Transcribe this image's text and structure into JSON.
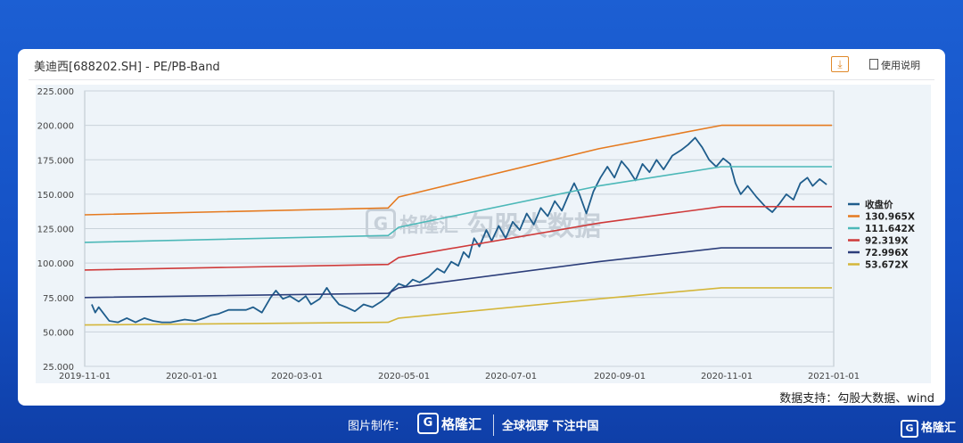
{
  "card": {
    "title": "美迪西[688202.SH] - PE/PB-Band",
    "help_label": "使用说明",
    "download_icon": "download-icon",
    "source": "数据支持：勾股大数据、wind"
  },
  "watermark": {
    "brand": "格隆汇",
    "text": "勾股大数据",
    "logo_letter": "G"
  },
  "footer": {
    "made_by": "图片制作：",
    "logo_letter": "G",
    "brand": "格隆汇",
    "slogan": "全球视野 下注中国",
    "corner_brand": "格隆汇"
  },
  "colors": {
    "close": "#1f5d8c",
    "band1": "#e57a1f",
    "band2": "#4cb8b8",
    "band3": "#cf3a3a",
    "band4": "#2c3e7a",
    "band5": "#d4b63a"
  },
  "chart_data": {
    "type": "line",
    "title": "美迪西[688202.SH] - PE/PB-Band",
    "ylim": [
      25,
      225
    ],
    "yticks": [
      "225.000",
      "200.000",
      "175.000",
      "150.000",
      "125.000",
      "100.000",
      "75.000",
      "50.000",
      "25.000"
    ],
    "ytick_values": [
      225,
      200,
      175,
      150,
      125,
      100,
      75,
      50,
      25
    ],
    "xlim": [
      "2019-11-01",
      "2021-01-01"
    ],
    "xticks": [
      "2019-11-01",
      "2020-01-01",
      "2020-03-01",
      "2020-05-01",
      "2020-07-01",
      "2020-09-01",
      "2020-11-01",
      "2021-01-01"
    ],
    "grid": true,
    "legend_position": "right",
    "series": [
      {
        "name": "收盘价",
        "color": "#1f5d8c",
        "points": [
          [
            "2019-11-05",
            70
          ],
          [
            "2019-11-07",
            64
          ],
          [
            "2019-11-09",
            68
          ],
          [
            "2019-11-12",
            63
          ],
          [
            "2019-11-15",
            58
          ],
          [
            "2019-11-20",
            57
          ],
          [
            "2019-11-25",
            60
          ],
          [
            "2019-11-30",
            57
          ],
          [
            "2019-12-05",
            60
          ],
          [
            "2019-12-10",
            58
          ],
          [
            "2019-12-15",
            57
          ],
          [
            "2019-12-20",
            57
          ],
          [
            "2019-12-28",
            59
          ],
          [
            "2020-01-03",
            58
          ],
          [
            "2020-01-08",
            60
          ],
          [
            "2020-01-12",
            62
          ],
          [
            "2020-01-16",
            63
          ],
          [
            "2020-01-22",
            66
          ],
          [
            "2020-02-01",
            66
          ],
          [
            "2020-02-05",
            68
          ],
          [
            "2020-02-10",
            64
          ],
          [
            "2020-02-15",
            75
          ],
          [
            "2020-02-18",
            80
          ],
          [
            "2020-02-22",
            74
          ],
          [
            "2020-02-26",
            76
          ],
          [
            "2020-03-02",
            72
          ],
          [
            "2020-03-06",
            76
          ],
          [
            "2020-03-09",
            70
          ],
          [
            "2020-03-14",
            74
          ],
          [
            "2020-03-18",
            82
          ],
          [
            "2020-03-21",
            76
          ],
          [
            "2020-03-25",
            70
          ],
          [
            "2020-03-29",
            68
          ],
          [
            "2020-04-03",
            65
          ],
          [
            "2020-04-08",
            70
          ],
          [
            "2020-04-13",
            68
          ],
          [
            "2020-04-18",
            72
          ],
          [
            "2020-04-22",
            76
          ],
          [
            "2020-04-24",
            80
          ],
          [
            "2020-04-28",
            85
          ],
          [
            "2020-05-02",
            83
          ],
          [
            "2020-05-06",
            88
          ],
          [
            "2020-05-10",
            86
          ],
          [
            "2020-05-15",
            90
          ],
          [
            "2020-05-20",
            96
          ],
          [
            "2020-05-24",
            93
          ],
          [
            "2020-05-28",
            101
          ],
          [
            "2020-06-01",
            98
          ],
          [
            "2020-06-04",
            108
          ],
          [
            "2020-06-07",
            104
          ],
          [
            "2020-06-10",
            118
          ],
          [
            "2020-06-13",
            112
          ],
          [
            "2020-06-17",
            124
          ],
          [
            "2020-06-20",
            116
          ],
          [
            "2020-06-24",
            127
          ],
          [
            "2020-06-28",
            118
          ],
          [
            "2020-07-02",
            130
          ],
          [
            "2020-07-06",
            124
          ],
          [
            "2020-07-10",
            136
          ],
          [
            "2020-07-14",
            128
          ],
          [
            "2020-07-18",
            140
          ],
          [
            "2020-07-22",
            134
          ],
          [
            "2020-07-26",
            145
          ],
          [
            "2020-07-30",
            138
          ],
          [
            "2020-08-03",
            150
          ],
          [
            "2020-08-06",
            158
          ],
          [
            "2020-08-09",
            150
          ],
          [
            "2020-08-13",
            136
          ],
          [
            "2020-08-17",
            152
          ],
          [
            "2020-08-21",
            162
          ],
          [
            "2020-08-25",
            170
          ],
          [
            "2020-08-29",
            162
          ],
          [
            "2020-09-02",
            174
          ],
          [
            "2020-09-06",
            168
          ],
          [
            "2020-09-10",
            160
          ],
          [
            "2020-09-14",
            172
          ],
          [
            "2020-09-18",
            166
          ],
          [
            "2020-09-22",
            175
          ],
          [
            "2020-09-26",
            168
          ],
          [
            "2020-10-01",
            178
          ],
          [
            "2020-10-06",
            182
          ],
          [
            "2020-10-10",
            186
          ],
          [
            "2020-10-14",
            191
          ],
          [
            "2020-10-18",
            184
          ],
          [
            "2020-10-22",
            175
          ],
          [
            "2020-10-26",
            170
          ],
          [
            "2020-10-30",
            176
          ],
          [
            "2020-11-03",
            172
          ],
          [
            "2020-11-06",
            158
          ],
          [
            "2020-11-09",
            150
          ],
          [
            "2020-11-13",
            156
          ],
          [
            "2020-11-18",
            148
          ],
          [
            "2020-11-23",
            141
          ],
          [
            "2020-11-27",
            137
          ],
          [
            "2020-12-01",
            143
          ],
          [
            "2020-12-05",
            150
          ],
          [
            "2020-12-09",
            146
          ],
          [
            "2020-12-13",
            158
          ],
          [
            "2020-12-17",
            162
          ],
          [
            "2020-12-20",
            156
          ],
          [
            "2020-12-24",
            161
          ],
          [
            "2020-12-28",
            157
          ]
        ]
      },
      {
        "name": "130.965X",
        "color": "#e57a1f",
        "points": [
          [
            "2019-11-01",
            135
          ],
          [
            "2020-04-22",
            140
          ],
          [
            "2020-04-28",
            148
          ],
          [
            "2020-08-20",
            183
          ],
          [
            "2020-10-29",
            200
          ],
          [
            "2020-12-31",
            200
          ]
        ]
      },
      {
        "name": "111.642X",
        "color": "#4cb8b8",
        "points": [
          [
            "2019-11-01",
            115
          ],
          [
            "2020-04-22",
            120
          ],
          [
            "2020-04-28",
            126
          ],
          [
            "2020-08-20",
            156
          ],
          [
            "2020-10-29",
            170
          ],
          [
            "2020-12-31",
            170
          ]
        ]
      },
      {
        "name": "92.319X",
        "color": "#cf3a3a",
        "points": [
          [
            "2019-11-01",
            95
          ],
          [
            "2020-04-22",
            99
          ],
          [
            "2020-04-28",
            104
          ],
          [
            "2020-08-20",
            129
          ],
          [
            "2020-10-29",
            141
          ],
          [
            "2020-12-31",
            141
          ]
        ]
      },
      {
        "name": "72.996X",
        "color": "#2c3e7a",
        "points": [
          [
            "2019-11-01",
            75
          ],
          [
            "2020-04-22",
            78
          ],
          [
            "2020-04-28",
            82
          ],
          [
            "2020-08-20",
            101
          ],
          [
            "2020-10-29",
            111
          ],
          [
            "2020-12-31",
            111
          ]
        ]
      },
      {
        "name": "53.672X",
        "color": "#d4b63a",
        "points": [
          [
            "2019-11-01",
            55
          ],
          [
            "2020-04-22",
            57
          ],
          [
            "2020-04-28",
            60
          ],
          [
            "2020-08-20",
            74
          ],
          [
            "2020-10-29",
            82
          ],
          [
            "2020-12-31",
            82
          ]
        ]
      }
    ]
  }
}
